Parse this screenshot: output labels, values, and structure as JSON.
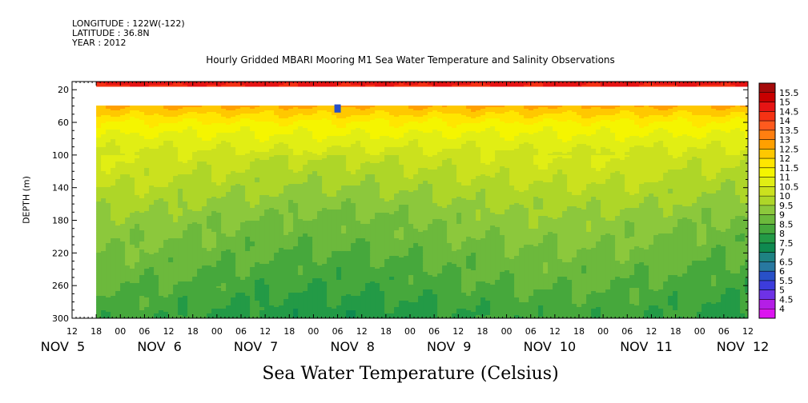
{
  "header": {
    "lines": [
      "LONGITUDE : 122W(-122)",
      "LATITUDE : 36.8N",
      "YEAR : 2012"
    ]
  },
  "chart_data": {
    "type": "heatmap",
    "title": "Hourly Gridded MBARI Mooring M1 Sea Water Temperature and Salinity Observations",
    "xlabel": "Sea Water Temperature (Celsius)",
    "ylabel": "DEPTH (m)",
    "y_ticks": [
      20,
      60,
      100,
      140,
      180,
      220,
      260,
      300
    ],
    "ylim": [
      300,
      10
    ],
    "y_direction": "depth increases downward",
    "x_hour_ticks": [
      "12",
      "18",
      "00",
      "06",
      "12",
      "18",
      "00",
      "06",
      "12",
      "18",
      "00",
      "06",
      "12",
      "18",
      "00",
      "06",
      "12",
      "18",
      "00",
      "06",
      "12",
      "18",
      "00",
      "06",
      "12",
      "18",
      "00",
      "06",
      "12"
    ],
    "x_day_labels": [
      "NOV 5",
      "NOV 6",
      "NOV 7",
      "NOV 8",
      "NOV 9",
      "NOV 10",
      "NOV 11",
      "NOV 12"
    ],
    "xlim": [
      "2012-11-05 12:00",
      "2012-11-12 12:00"
    ],
    "data_start": "2012-11-05 18:00",
    "depth_rows": [
      {
        "depth": 10,
        "temp": 14.8
      },
      {
        "depth": 40,
        "temp": 12.5
      },
      {
        "depth": 60,
        "temp": 11.4
      },
      {
        "depth": 80,
        "temp": 10.8
      },
      {
        "depth": 100,
        "temp": 10.3
      },
      {
        "depth": 120,
        "temp": 10.0
      },
      {
        "depth": 140,
        "temp": 9.7
      },
      {
        "depth": 160,
        "temp": 9.4
      },
      {
        "depth": 180,
        "temp": 9.1
      },
      {
        "depth": 200,
        "temp": 8.9
      },
      {
        "depth": 220,
        "temp": 8.7
      },
      {
        "depth": 240,
        "temp": 8.5
      },
      {
        "depth": 260,
        "temp": 8.3
      },
      {
        "depth": 280,
        "temp": 8.1
      },
      {
        "depth": 300,
        "temp": 7.9
      }
    ],
    "missing_band": {
      "depth_from": 14,
      "depth_to": 38
    },
    "anomaly": {
      "time": "2012-11-08 06:00",
      "depth_from": 38,
      "depth_to": 48,
      "temp": 5.5
    },
    "colorbar": {
      "levels": [
        15.5,
        15,
        14.5,
        14,
        13.5,
        13,
        12.5,
        12,
        11.5,
        11,
        10.5,
        10,
        9.5,
        9,
        8.5,
        8,
        7.5,
        7,
        6.5,
        6,
        5.5,
        5,
        4.5,
        4
      ],
      "labels": [
        "15.5",
        "15",
        "14.5",
        "14",
        "13.5",
        "13",
        "12.5",
        "12",
        "11.5",
        "11",
        "10.5",
        "10",
        "9.5",
        "9",
        "8.5",
        "8",
        "7.5",
        "7",
        "6.5",
        "6",
        "5.5",
        "5",
        "4.5",
        "4"
      ],
      "colors": [
        "#a50a0a",
        "#c80000",
        "#e61414",
        "#f53214",
        "#ff5a1e",
        "#ff7f10",
        "#ffa000",
        "#ffc800",
        "#ffe600",
        "#f5f500",
        "#e1ee14",
        "#cbe11e",
        "#aed628",
        "#8cc83c",
        "#6cb93c",
        "#46a83c",
        "#239a46",
        "#0f8a50",
        "#1e8282",
        "#2878a0",
        "#2850c8",
        "#3c3cdc",
        "#6e32e6",
        "#b41ee6",
        "#dc14f0"
      ]
    }
  }
}
